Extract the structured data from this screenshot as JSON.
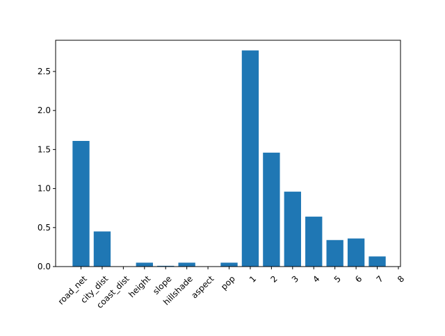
{
  "chart_data": {
    "type": "bar",
    "title": "",
    "xlabel": "",
    "ylabel": "",
    "categories": [
      "road_net",
      "city_dist",
      "coast_dist",
      "height",
      "slope",
      "hillshade",
      "aspect",
      "pop",
      "1",
      "2",
      "3",
      "4",
      "5",
      "6",
      "7",
      "8"
    ],
    "values": [
      1.61,
      0.45,
      0.0,
      0.05,
      0.01,
      0.05,
      0.0,
      0.05,
      2.77,
      1.46,
      0.96,
      0.64,
      0.34,
      0.36,
      0.13,
      0.0
    ],
    "ylim": [
      0,
      2.9
    ],
    "yticks": [
      "0.0",
      "0.5",
      "1.0",
      "1.5",
      "2.0",
      "2.5"
    ],
    "grid": false,
    "bar_color": "#1f77b4"
  }
}
